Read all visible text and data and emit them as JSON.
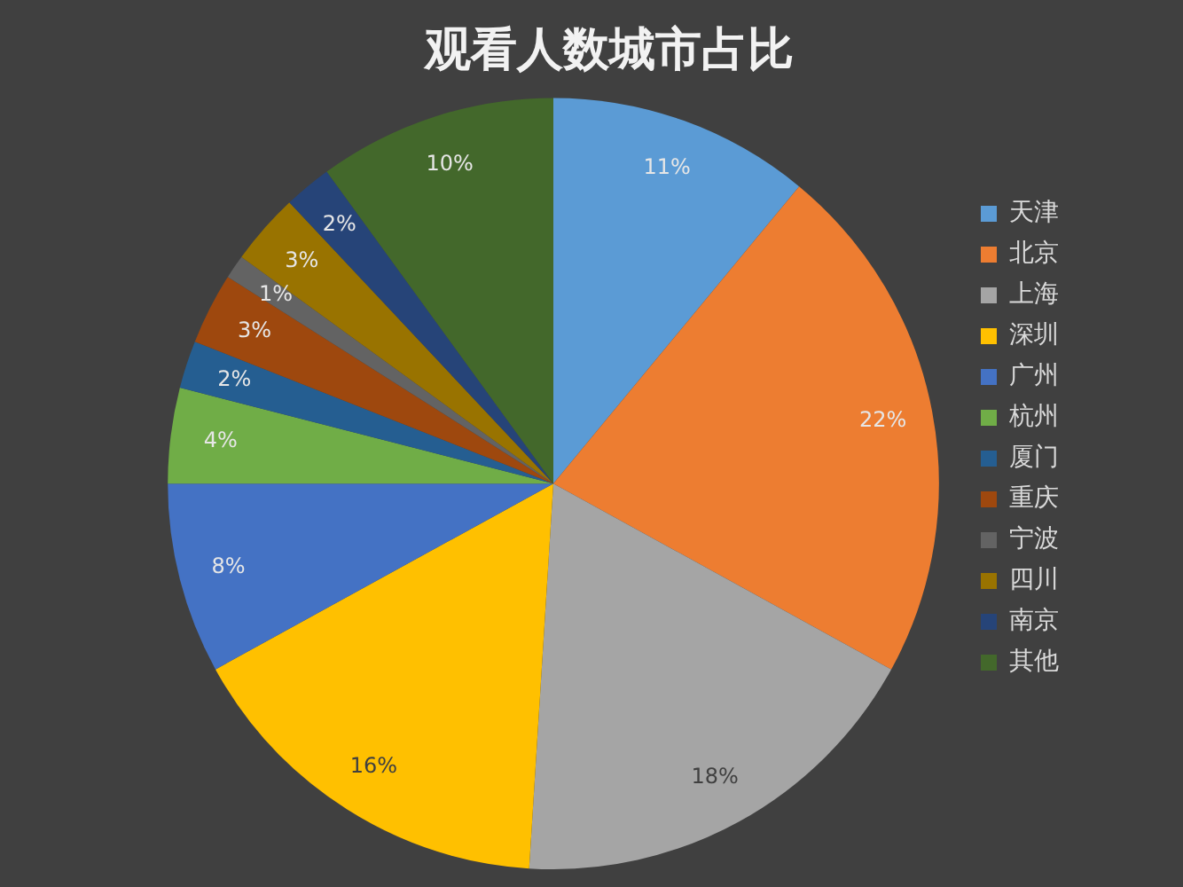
{
  "chart_data": {
    "type": "pie",
    "title": "观看人数城市占比",
    "categories": [
      "天津",
      "北京",
      "上海",
      "深圳",
      "广州",
      "杭州",
      "厦门",
      "重庆",
      "宁波",
      "四川",
      "南京",
      "其他"
    ],
    "values": [
      11,
      22,
      18,
      16,
      8,
      4,
      2,
      3,
      1,
      3,
      2,
      10
    ],
    "value_labels": [
      "11%",
      "22%",
      "18%",
      "16%",
      "8%",
      "4%",
      "2%",
      "3%",
      "1%",
      "3%",
      "2%",
      "10%"
    ],
    "colors": [
      "#5b9bd5",
      "#ed7d31",
      "#a5a5a5",
      "#ffc000",
      "#4472c4",
      "#70ad47",
      "#255e91",
      "#9e480e",
      "#636363",
      "#997300",
      "#264478",
      "#43682b"
    ],
    "legend": "right"
  }
}
